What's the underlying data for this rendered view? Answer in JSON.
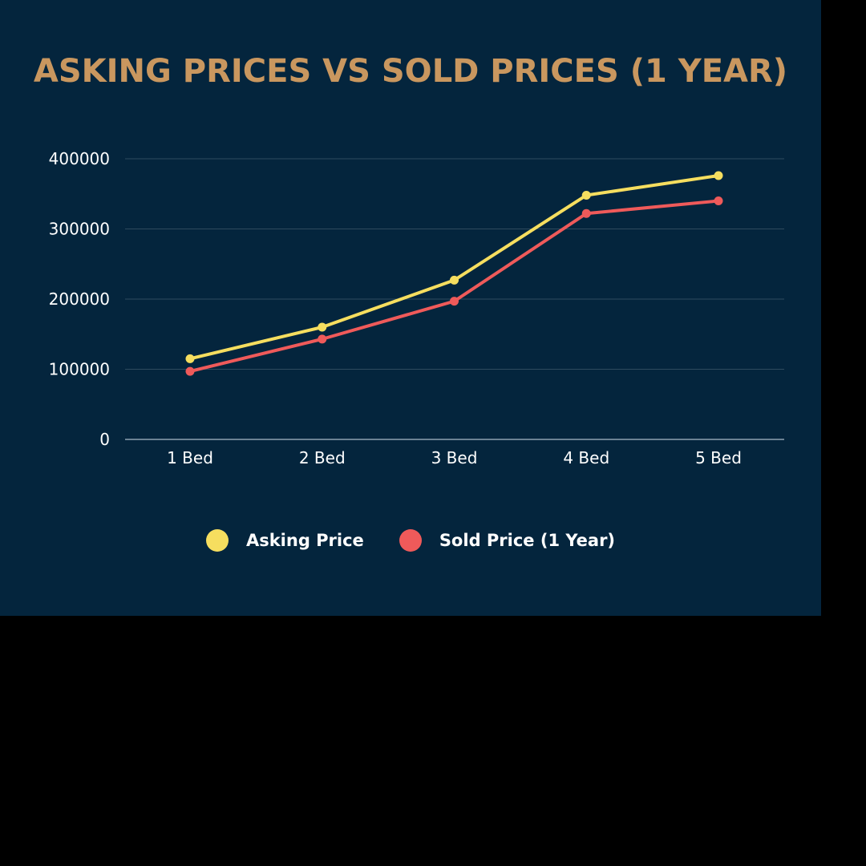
{
  "chart_data": {
    "type": "line",
    "title": "ASKING PRICES VS SOLD PRICES (1 YEAR)",
    "categories": [
      "1 Bed",
      "2 Bed",
      "3 Bed",
      "4 Bed",
      "5 Bed"
    ],
    "series": [
      {
        "name": "Asking Price",
        "color": "#f6de5f",
        "values": [
          115000,
          160000,
          227000,
          348000,
          376000
        ]
      },
      {
        "name": "Sold Price (1 Year)",
        "color": "#ef5a5a",
        "values": [
          97000,
          143000,
          197000,
          322000,
          340000
        ]
      }
    ],
    "ylim": [
      0,
      400000
    ],
    "yticks": [
      "0",
      "100000",
      "200000",
      "300000",
      "400000"
    ],
    "grid": true,
    "legend_position": "bottom"
  },
  "colors": {
    "background": "#04253d",
    "title": "#c9975f",
    "grid": "#2e4a5e",
    "axis_text": "#ffffff"
  }
}
